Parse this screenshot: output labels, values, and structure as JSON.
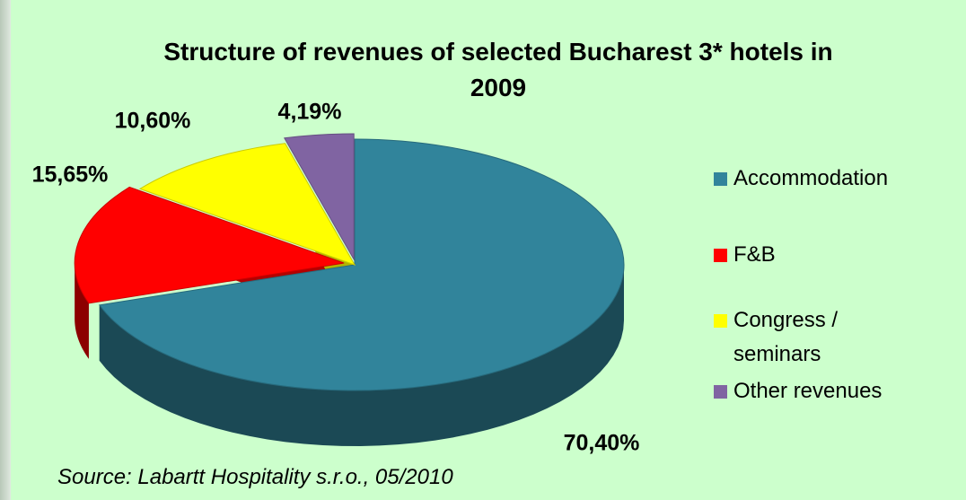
{
  "chart_data": {
    "type": "pie",
    "title": "Structure of revenues of selected Bucharest 3* hotels in 2009",
    "categories": [
      "Accommodation",
      "F&B",
      "Congress / seminars",
      "Other revenues"
    ],
    "values": [
      70.4,
      15.65,
      10.6,
      4.19
    ],
    "value_labels": [
      "70,40%",
      "15,65%",
      "10,60%",
      "4,19%"
    ],
    "colors": [
      "#31849b",
      "#ff0000",
      "#ffff00",
      "#8064a2"
    ],
    "source": "Source: Labartt Hospitality s.r.o., 05/2010"
  }
}
